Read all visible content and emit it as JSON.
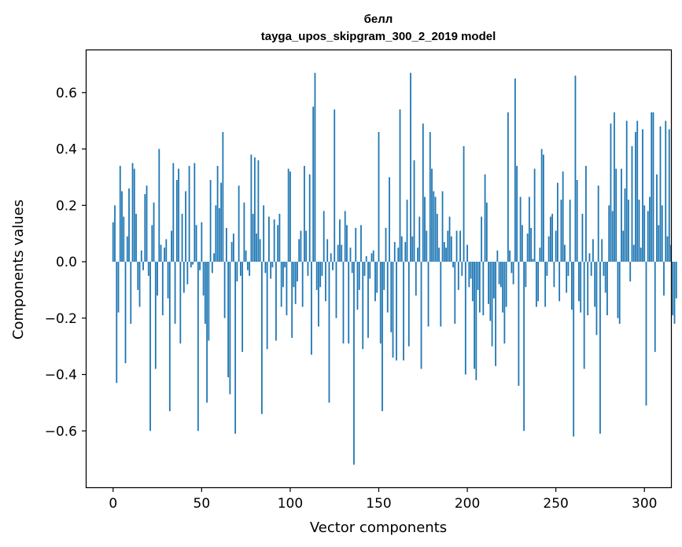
{
  "chart_data": {
    "type": "bar",
    "title": "белл",
    "subtitle": "tayga_upos_skipgram_300_2_2019 model",
    "xlabel": "Vector components",
    "ylabel": "Components values",
    "xlim": [
      -15,
      315
    ],
    "ylim": [
      -0.8,
      0.75
    ],
    "xticks": [
      0,
      50,
      100,
      150,
      200,
      250,
      300
    ],
    "xtick_labels": [
      "0",
      "50",
      "100",
      "150",
      "200",
      "250",
      "300"
    ],
    "yticks": [
      -0.6,
      -0.4,
      -0.2,
      0.0,
      0.2,
      0.4,
      0.6
    ],
    "ytick_labels": [
      "−0.6",
      "−0.4",
      "−0.2",
      "0.0",
      "0.2",
      "0.4",
      "0.6"
    ],
    "bar_color": "#1f77b4",
    "values": [
      0.14,
      0.2,
      -0.43,
      -0.18,
      0.34,
      0.25,
      0.16,
      -0.36,
      0.09,
      0.26,
      -0.22,
      0.35,
      0.33,
      0.17,
      -0.1,
      -0.16,
      0.04,
      -0.03,
      0.24,
      0.27,
      -0.05,
      -0.6,
      0.13,
      0.21,
      -0.38,
      -0.12,
      0.4,
      0.06,
      -0.19,
      0.05,
      0.08,
      -0.13,
      -0.53,
      0.11,
      0.35,
      -0.22,
      0.29,
      0.33,
      -0.29,
      0.17,
      -0.11,
      0.25,
      -0.08,
      0.34,
      -0.02,
      -0.01,
      0.35,
      0.13,
      -0.6,
      -0.03,
      0.14,
      -0.12,
      -0.22,
      -0.5,
      -0.28,
      0.29,
      -0.04,
      0.03,
      0.2,
      0.34,
      0.19,
      0.28,
      0.46,
      -0.2,
      0.12,
      -0.41,
      -0.47,
      0.07,
      0.1,
      -0.61,
      -0.07,
      0.27,
      -0.05,
      -0.32,
      0.21,
      0.04,
      -0.03,
      -0.05,
      0.38,
      0.17,
      0.37,
      0.1,
      0.36,
      0.08,
      -0.54,
      0.2,
      -0.04,
      -0.31,
      0.16,
      -0.06,
      -0.02,
      0.15,
      -0.28,
      0.13,
      0.17,
      -0.16,
      -0.09,
      -0.02,
      -0.19,
      0.33,
      0.32,
      -0.27,
      -0.09,
      -0.15,
      -0.07,
      0.08,
      0.11,
      -0.16,
      0.34,
      0.11,
      -0.05,
      0.31,
      -0.33,
      0.55,
      0.67,
      -0.1,
      -0.23,
      -0.09,
      -0.05,
      0.18,
      -0.14,
      0.08,
      -0.5,
      0.03,
      -0.03,
      0.54,
      -0.2,
      0.06,
      0.15,
      0.06,
      -0.29,
      0.18,
      0.13,
      -0.29,
      0.05,
      -0.04,
      -0.72,
      0.12,
      -0.17,
      -0.1,
      0.13,
      -0.31,
      -0.05,
      0.02,
      -0.27,
      -0.06,
      0.03,
      0.04,
      -0.14,
      -0.11,
      0.46,
      -0.29,
      -0.53,
      -0.1,
      0.12,
      -0.18,
      0.3,
      -0.25,
      -0.34,
      0.07,
      -0.35,
      0.05,
      0.54,
      0.09,
      -0.35,
      0.07,
      0.22,
      -0.3,
      0.67,
      0.09,
      0.36,
      -0.12,
      0.05,
      0.16,
      -0.38,
      0.49,
      0.23,
      0.11,
      -0.23,
      0.46,
      0.33,
      0.25,
      0.23,
      0.17,
      0.05,
      -0.23,
      0.25,
      0.07,
      0.05,
      0.11,
      0.16,
      0.09,
      -0.02,
      -0.22,
      0.11,
      -0.1,
      0.11,
      -0.05,
      0.41,
      -0.4,
      0.06,
      -0.09,
      -0.06,
      -0.14,
      -0.38,
      -0.42,
      -0.1,
      -0.18,
      0.16,
      -0.19,
      0.31,
      0.21,
      -0.15,
      -0.21,
      -0.3,
      -0.13,
      -0.37,
      0.04,
      -0.08,
      -0.09,
      -0.18,
      -0.29,
      -0.16,
      0.53,
      0.04,
      -0.04,
      -0.08,
      0.65,
      0.34,
      -0.44,
      0.23,
      0.13,
      -0.6,
      -0.09,
      0.1,
      0.23,
      0.12,
      0.01,
      0.33,
      -0.16,
      -0.14,
      0.05,
      0.4,
      0.38,
      -0.16,
      -0.05,
      0.09,
      0.16,
      0.17,
      -0.09,
      0.11,
      0.28,
      -0.14,
      0.22,
      0.32,
      0.06,
      -0.11,
      -0.05,
      0.22,
      -0.17,
      -0.62,
      0.66,
      0.29,
      -0.14,
      -0.18,
      0.17,
      -0.38,
      0.34,
      -0.19,
      0.03,
      -0.05,
      0.08,
      -0.16,
      -0.26,
      0.27,
      -0.61,
      0.08,
      -0.05,
      -0.11,
      -0.19,
      0.2,
      0.49,
      0.18,
      0.53,
      0.33,
      -0.2,
      -0.22,
      0.33,
      0.11,
      0.26,
      0.5,
      0.22,
      -0.07,
      0.41,
      0.06,
      0.46,
      0.5,
      0.22,
      0.05,
      0.47,
      0.2,
      -0.51,
      0.18,
      0.23,
      0.53,
      0.53,
      -0.32,
      0.31,
      0.13,
      0.48,
      0.2,
      -0.12,
      0.5,
      0.09,
      0.47,
      0.06,
      -0.19,
      -0.22,
      -0.13
    ]
  }
}
